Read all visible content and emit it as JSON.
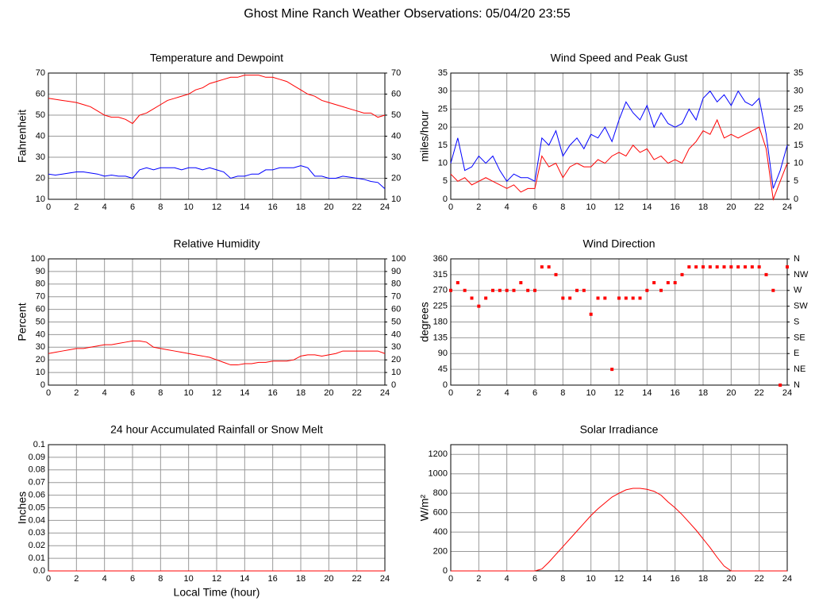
{
  "title": "Ghost Mine Ranch Weather Observations: 05/04/20 23:55",
  "chart_data": [
    {
      "type": "line",
      "title": "Temperature and Dewpoint",
      "ylabel": "Fahrenheit",
      "grid": true,
      "x": [
        0,
        0.5,
        1,
        1.5,
        2,
        2.5,
        3,
        3.5,
        4,
        4.5,
        5,
        5.5,
        6,
        6.5,
        7,
        7.5,
        8,
        8.5,
        9,
        9.5,
        10,
        10.5,
        11,
        11.5,
        12,
        12.5,
        13,
        13.5,
        14,
        14.5,
        15,
        15.5,
        16,
        16.5,
        17,
        17.5,
        18,
        18.5,
        19,
        19.5,
        20,
        20.5,
        21,
        21.5,
        22,
        22.5,
        23,
        23.5,
        24
      ],
      "series": [
        {
          "color": "#ff0000",
          "values": [
            58,
            57.5,
            57,
            56.5,
            56,
            55,
            54,
            52,
            50,
            49,
            49,
            48,
            46,
            50,
            51,
            53,
            55,
            57,
            58,
            59,
            60,
            62,
            63,
            65,
            66,
            67,
            68,
            68,
            69,
            69,
            69,
            68,
            68,
            67,
            66,
            64,
            62,
            60,
            59,
            57,
            56,
            55,
            54,
            53,
            52,
            51,
            51,
            49,
            50
          ]
        },
        {
          "color": "#0000ff",
          "values": [
            22,
            21.5,
            22,
            22.5,
            23,
            23,
            22.5,
            22,
            21,
            21.5,
            21,
            21,
            20,
            24,
            25,
            24,
            25,
            25,
            25,
            24,
            25,
            25,
            24,
            25,
            24,
            23,
            20,
            21,
            21,
            22,
            22,
            24,
            24,
            25,
            25,
            25,
            26,
            25,
            21,
            21,
            20,
            20,
            21,
            20.5,
            20,
            19.5,
            18.5,
            18,
            15
          ]
        }
      ],
      "xlim": [
        0,
        24
      ],
      "xticks": [
        0,
        2,
        4,
        6,
        8,
        10,
        12,
        14,
        16,
        18,
        20,
        22,
        24
      ],
      "ylim": [
        10,
        70
      ],
      "yticks": [
        10,
        20,
        30,
        40,
        50,
        60,
        70
      ],
      "y2lim": [
        10,
        70
      ],
      "y2ticks": [
        10,
        20,
        30,
        40,
        50,
        60,
        70
      ]
    },
    {
      "type": "line",
      "title": "Wind Speed and Peak Gust",
      "ylabel": "miles/hour",
      "grid": true,
      "x": [
        0,
        0.5,
        1,
        1.5,
        2,
        2.5,
        3,
        3.5,
        4,
        4.5,
        5,
        5.5,
        6,
        6.5,
        7,
        7.5,
        8,
        8.5,
        9,
        9.5,
        10,
        10.5,
        11,
        11.5,
        12,
        12.5,
        13,
        13.5,
        14,
        14.5,
        15,
        15.5,
        16,
        16.5,
        17,
        17.5,
        18,
        18.5,
        19,
        19.5,
        20,
        20.5,
        21,
        21.5,
        22,
        22.5,
        23,
        23.5,
        24
      ],
      "series": [
        {
          "color": "#0000ff",
          "values": [
            10,
            17,
            8,
            9,
            12,
            10,
            12,
            8,
            5,
            7,
            6,
            6,
            5,
            17,
            15,
            19,
            12,
            15,
            17,
            14,
            18,
            17,
            20,
            16,
            22,
            27,
            24,
            22,
            26,
            20,
            24,
            21,
            20,
            21,
            25,
            22,
            28,
            30,
            27,
            29,
            26,
            30,
            27,
            26,
            28,
            18,
            3,
            8,
            15
          ]
        },
        {
          "color": "#ff0000",
          "values": [
            7,
            5,
            6,
            4,
            5,
            6,
            5,
            4,
            3,
            4,
            2,
            3,
            3,
            12,
            9,
            10,
            6,
            9,
            10,
            9,
            9,
            11,
            10,
            12,
            13,
            12,
            15,
            13,
            14,
            11,
            12,
            10,
            11,
            10,
            14,
            16,
            19,
            18,
            22,
            17,
            18,
            17,
            18,
            19,
            20,
            14,
            0,
            5,
            10
          ]
        }
      ],
      "xlim": [
        0,
        24
      ],
      "xticks": [
        0,
        2,
        4,
        6,
        8,
        10,
        12,
        14,
        16,
        18,
        20,
        22,
        24
      ],
      "ylim": [
        0,
        35
      ],
      "yticks": [
        0,
        5,
        10,
        15,
        20,
        25,
        30,
        35
      ],
      "y2lim": [
        0,
        35
      ],
      "y2ticks": [
        0,
        5,
        10,
        15,
        20,
        25,
        30,
        35
      ]
    },
    {
      "type": "line",
      "title": "Relative Humidity",
      "ylabel": "Percent",
      "grid": true,
      "x": [
        0,
        0.5,
        1,
        1.5,
        2,
        2.5,
        3,
        3.5,
        4,
        4.5,
        5,
        5.5,
        6,
        6.5,
        7,
        7.5,
        8,
        8.5,
        9,
        9.5,
        10,
        10.5,
        11,
        11.5,
        12,
        12.5,
        13,
        13.5,
        14,
        14.5,
        15,
        15.5,
        16,
        16.5,
        17,
        17.5,
        18,
        18.5,
        19,
        19.5,
        20,
        20.5,
        21,
        21.5,
        22,
        22.5,
        23,
        23.5,
        24
      ],
      "series": [
        {
          "color": "#ff0000",
          "values": [
            25,
            26,
            27,
            28,
            29,
            29,
            30,
            31,
            32,
            32,
            33,
            34,
            35,
            35,
            34,
            30,
            29,
            28,
            27,
            26,
            25,
            24,
            23,
            22,
            20,
            18,
            16,
            16,
            17,
            17,
            18,
            18,
            19,
            19,
            19,
            20,
            23,
            24,
            24,
            23,
            24,
            25,
            27,
            27,
            27,
            27,
            27,
            27,
            25
          ]
        }
      ],
      "xlim": [
        0,
        24
      ],
      "xticks": [
        0,
        2,
        4,
        6,
        8,
        10,
        12,
        14,
        16,
        18,
        20,
        22,
        24
      ],
      "ylim": [
        0,
        100
      ],
      "yticks": [
        0,
        10,
        20,
        30,
        40,
        50,
        60,
        70,
        80,
        90,
        100
      ],
      "y2lim": [
        0,
        100
      ],
      "y2ticks": [
        0,
        10,
        20,
        30,
        40,
        50,
        60,
        70,
        80,
        90,
        100
      ]
    },
    {
      "type": "scatter",
      "title": "Wind Direction",
      "ylabel": "degrees",
      "grid": true,
      "x": [
        0,
        0.5,
        1,
        1.5,
        2,
        2.5,
        3,
        3.5,
        4,
        4.5,
        5,
        5.5,
        6,
        6.5,
        7,
        7.5,
        8,
        8.5,
        9,
        9.5,
        10,
        10.5,
        11,
        11.5,
        12,
        12.5,
        13,
        13.5,
        14,
        14.5,
        15,
        15.5,
        16,
        16.5,
        17,
        17.5,
        18,
        18.5,
        19,
        19.5,
        20,
        20.5,
        21,
        21.5,
        22,
        22.5,
        23,
        23.5,
        24
      ],
      "series": [
        {
          "color": "#ff0000",
          "values": [
            270,
            292,
            270,
            248,
            225,
            248,
            270,
            270,
            270,
            270,
            292,
            270,
            270,
            337,
            337,
            315,
            248,
            248,
            270,
            270,
            202,
            248,
            248,
            45,
            248,
            248,
            248,
            248,
            270,
            292,
            270,
            292,
            292,
            315,
            337,
            337,
            337,
            337,
            337,
            337,
            337,
            337,
            337,
            337,
            337,
            315,
            270,
            0,
            337
          ]
        }
      ],
      "xlim": [
        0,
        24
      ],
      "xticks": [
        0,
        2,
        4,
        6,
        8,
        10,
        12,
        14,
        16,
        18,
        20,
        22,
        24
      ],
      "ylim": [
        0,
        360
      ],
      "yticks": [
        0,
        45,
        90,
        135,
        180,
        225,
        270,
        315,
        360
      ],
      "y2lim": [
        0,
        360
      ],
      "y2ticks": [
        {
          "value": 0,
          "label": "N"
        },
        {
          "value": 45,
          "label": "NE"
        },
        {
          "value": 90,
          "label": "E"
        },
        {
          "value": 135,
          "label": "SE"
        },
        {
          "value": 180,
          "label": "S"
        },
        {
          "value": 225,
          "label": "SW"
        },
        {
          "value": 270,
          "label": "W"
        },
        {
          "value": 315,
          "label": "NW"
        },
        {
          "value": 360,
          "label": "N"
        }
      ]
    },
    {
      "type": "line",
      "title": "24 hour Accumulated Rainfall or Snow Melt",
      "ylabel": "Inches",
      "xlabel": "Local Time (hour)",
      "grid": true,
      "x": [
        0,
        24
      ],
      "series": [
        {
          "color": "#ff0000",
          "values": [
            0,
            0
          ]
        }
      ],
      "xlim": [
        0,
        24
      ],
      "xticks": [
        0,
        2,
        4,
        6,
        8,
        10,
        12,
        14,
        16,
        18,
        20,
        22,
        24
      ],
      "ylim": [
        0,
        0.1
      ],
      "yticks": [
        {
          "value": 0,
          "label": "0.0"
        },
        0.01,
        0.02,
        0.03,
        0.04,
        0.05,
        0.06,
        0.07,
        0.08,
        0.09,
        0.1
      ]
    },
    {
      "type": "line",
      "title": "Solar Irradiance",
      "ylabel": "W/m²",
      "grid": true,
      "x": [
        0,
        0.5,
        1,
        1.5,
        2,
        2.5,
        3,
        3.5,
        4,
        4.5,
        5,
        5.5,
        6,
        6.5,
        7,
        7.5,
        8,
        8.5,
        9,
        9.5,
        10,
        10.5,
        11,
        11.5,
        12,
        12.5,
        13,
        13.5,
        14,
        14.5,
        15,
        15.5,
        16,
        16.5,
        17,
        17.5,
        18,
        18.5,
        19,
        19.5,
        20,
        20.5,
        21,
        21.5,
        22,
        22.5,
        23,
        23.5,
        24
      ],
      "series": [
        {
          "color": "#ff0000",
          "values": [
            0,
            0,
            0,
            0,
            0,
            0,
            0,
            0,
            0,
            0,
            0,
            0,
            0,
            20,
            90,
            170,
            250,
            330,
            410,
            490,
            570,
            640,
            700,
            760,
            800,
            835,
            850,
            850,
            840,
            820,
            780,
            710,
            650,
            580,
            500,
            420,
            330,
            240,
            140,
            50,
            0,
            0,
            0,
            0,
            0,
            0,
            0,
            0,
            0
          ]
        }
      ],
      "xlim": [
        0,
        24
      ],
      "xticks": [
        0,
        2,
        4,
        6,
        8,
        10,
        12,
        14,
        16,
        18,
        20,
        22,
        24
      ],
      "ylim": [
        0,
        1300
      ],
      "yticks": [
        0,
        200,
        400,
        600,
        800,
        1000,
        1200
      ]
    }
  ]
}
